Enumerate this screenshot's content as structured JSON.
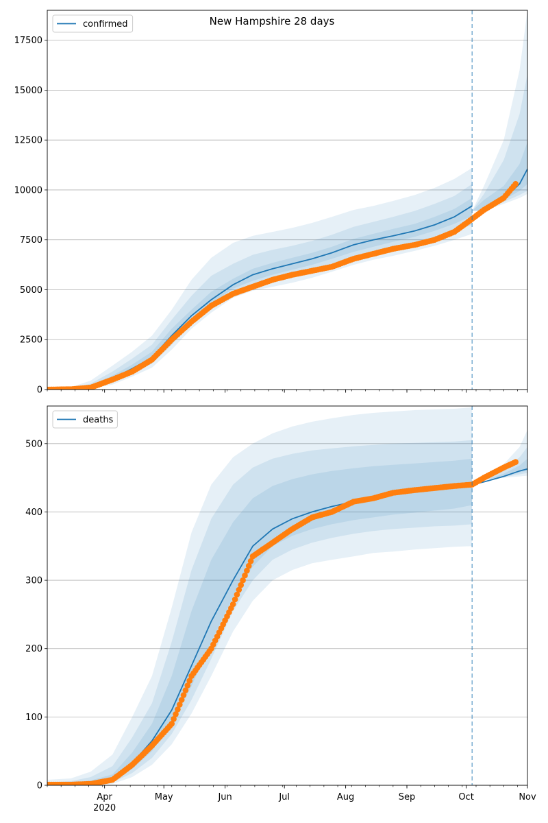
{
  "figure": {
    "title": "New Hampshire 28 days"
  },
  "colors": {
    "model": "#1f77b4",
    "observed": "#ff7f0e",
    "band": "#1f77b4",
    "grid": "#b0b0b0",
    "forecast_line": "#1f77b4"
  },
  "x_axis": {
    "ticks": [
      {
        "date": "2020-04-01",
        "label": "Apr",
        "sub": "2020"
      },
      {
        "date": "2020-05-01",
        "label": "May"
      },
      {
        "date": "2020-06-01",
        "label": "Jun"
      },
      {
        "date": "2020-07-01",
        "label": "Jul"
      },
      {
        "date": "2020-08-01",
        "label": "Aug"
      },
      {
        "date": "2020-09-01",
        "label": "Sep"
      },
      {
        "date": "2020-10-01",
        "label": "Oct"
      },
      {
        "date": "2020-11-01",
        "label": "Nov"
      }
    ]
  },
  "chart_data": [
    {
      "type": "line",
      "legend": [
        "confirmed"
      ],
      "legend_position": "top-left",
      "grid": "horizontal",
      "xlim": [
        "2020-03-03",
        "2020-11-01"
      ],
      "ylim": [
        0,
        19000
      ],
      "y_ticks": [
        0,
        2500,
        5000,
        7500,
        10000,
        12500,
        15000,
        17500
      ],
      "forecast_start": "2020-10-04",
      "model_anchor_dates": [
        "2020-03-03",
        "2020-03-15",
        "2020-03-25",
        "2020-04-05",
        "2020-04-15",
        "2020-04-25",
        "2020-05-05",
        "2020-05-15",
        "2020-05-25",
        "2020-06-05",
        "2020-06-15",
        "2020-06-25",
        "2020-07-05",
        "2020-07-15",
        "2020-07-25",
        "2020-08-05",
        "2020-08-15",
        "2020-08-25",
        "2020-09-05",
        "2020-09-15",
        "2020-09-25",
        "2020-10-04",
        "2020-10-10",
        "2020-10-20",
        "2020-10-28",
        "2020-11-01"
      ],
      "model_median": [
        0,
        20,
        120,
        550,
        1050,
        1600,
        2700,
        3700,
        4500,
        5250,
        5750,
        6050,
        6300,
        6550,
        6850,
        7250,
        7500,
        7700,
        7950,
        8250,
        8650,
        9200,
        8950,
        9550,
        10300,
        11050
      ],
      "band_outer_lower": [
        0,
        0,
        30,
        250,
        650,
        1100,
        2000,
        3050,
        3850,
        4600,
        4950,
        5150,
        5350,
        5600,
        5900,
        6250,
        6500,
        6700,
        6950,
        7200,
        7500,
        7800,
        8950,
        9300,
        9600,
        9800
      ],
      "band_outer_upper": [
        60,
        120,
        450,
        1200,
        1900,
        2700,
        4000,
        5500,
        6600,
        7350,
        7700,
        7900,
        8100,
        8350,
        8650,
        9000,
        9200,
        9450,
        9750,
        10100,
        10550,
        11100,
        10200,
        12500,
        16000,
        19000
      ],
      "band_mid_lower": [
        0,
        5,
        60,
        350,
        800,
        1300,
        2250,
        3300,
        4100,
        4850,
        5250,
        5500,
        5750,
        6000,
        6300,
        6650,
        6900,
        7100,
        7350,
        7650,
        7950,
        8250,
        8950,
        9400,
        9750,
        9950
      ],
      "band_mid_upper": [
        40,
        70,
        300,
        900,
        1550,
        2250,
        3500,
        4700,
        5700,
        6300,
        6750,
        7000,
        7200,
        7450,
        7750,
        8150,
        8400,
        8650,
        8950,
        9300,
        9700,
        10300,
        9800,
        11500,
        13800,
        15800
      ],
      "band_inner_lower": [
        0,
        10,
        80,
        450,
        900,
        1450,
        2450,
        3500,
        4300,
        5050,
        5450,
        5750,
        6000,
        6250,
        6550,
        6900,
        7150,
        7400,
        7650,
        7950,
        8300,
        8700,
        8950,
        9500,
        9950,
        10300
      ],
      "band_inner_upper": [
        25,
        40,
        200,
        700,
        1250,
        1900,
        3050,
        4000,
        4900,
        5550,
        6050,
        6350,
        6600,
        6850,
        7150,
        7550,
        7800,
        8050,
        8300,
        8650,
        9050,
        9600,
        9500,
        10200,
        11300,
        12400
      ],
      "observed_anchor_dates": [
        "2020-03-03",
        "2020-03-15",
        "2020-03-25",
        "2020-04-05",
        "2020-04-15",
        "2020-04-25",
        "2020-05-05",
        "2020-05-15",
        "2020-05-25",
        "2020-06-05",
        "2020-06-15",
        "2020-06-25",
        "2020-07-05",
        "2020-07-15",
        "2020-07-25",
        "2020-08-05",
        "2020-08-15",
        "2020-08-25",
        "2020-09-05",
        "2020-09-15",
        "2020-09-25",
        "2020-10-04",
        "2020-10-10",
        "2020-10-20",
        "2020-10-26"
      ],
      "observed": [
        0,
        15,
        100,
        500,
        900,
        1500,
        2500,
        3400,
        4200,
        4800,
        5150,
        5500,
        5750,
        5950,
        6150,
        6550,
        6800,
        7050,
        7250,
        7500,
        7900,
        8550,
        9000,
        9600,
        10300
      ]
    },
    {
      "type": "line",
      "legend": [
        "deaths"
      ],
      "legend_position": "top-left",
      "grid": "horizontal",
      "xlim": [
        "2020-03-03",
        "2020-11-01"
      ],
      "ylim": [
        0,
        555
      ],
      "y_ticks": [
        0,
        100,
        200,
        300,
        400,
        500
      ],
      "forecast_start": "2020-10-04",
      "model_anchor_dates": [
        "2020-03-03",
        "2020-03-15",
        "2020-03-25",
        "2020-04-05",
        "2020-04-15",
        "2020-04-25",
        "2020-05-05",
        "2020-05-15",
        "2020-05-25",
        "2020-06-05",
        "2020-06-15",
        "2020-06-25",
        "2020-07-05",
        "2020-07-15",
        "2020-07-25",
        "2020-08-05",
        "2020-08-15",
        "2020-08-25",
        "2020-09-05",
        "2020-09-15",
        "2020-09-25",
        "2020-10-04",
        "2020-10-10",
        "2020-10-20",
        "2020-10-28",
        "2020-11-01"
      ],
      "model_median": [
        0,
        0,
        1,
        8,
        32,
        65,
        110,
        175,
        240,
        300,
        350,
        375,
        390,
        400,
        408,
        415,
        420,
        425,
        430,
        432,
        436,
        441,
        444,
        452,
        460,
        463
      ],
      "band_outer_lower": [
        0,
        0,
        0,
        2,
        12,
        30,
        60,
        105,
        160,
        225,
        270,
        300,
        315,
        325,
        330,
        335,
        340,
        342,
        345,
        347,
        349,
        350,
        448,
        450,
        452,
        453
      ],
      "band_outer_upper": [
        8,
        10,
        20,
        45,
        100,
        160,
        260,
        370,
        440,
        480,
        500,
        515,
        525,
        532,
        537,
        542,
        545,
        547,
        549,
        550,
        551,
        553,
        446,
        470,
        495,
        520
      ],
      "band_mid_lower": [
        0,
        0,
        0,
        4,
        18,
        40,
        75,
        125,
        185,
        255,
        300,
        330,
        345,
        355,
        362,
        368,
        372,
        375,
        377,
        379,
        380,
        382,
        447,
        451,
        455,
        457
      ],
      "band_mid_upper": [
        4,
        6,
        12,
        28,
        70,
        120,
        210,
        315,
        390,
        440,
        465,
        478,
        485,
        490,
        493,
        496,
        498,
        500,
        501,
        502,
        503,
        505,
        446,
        462,
        480,
        495
      ],
      "band_inner_lower": [
        0,
        0,
        0,
        5,
        24,
        50,
        90,
        145,
        210,
        275,
        320,
        350,
        365,
        375,
        382,
        388,
        392,
        396,
        399,
        402,
        405,
        410,
        447,
        452,
        458,
        460
      ],
      "band_inner_upper": [
        2,
        3,
        7,
        16,
        48,
        90,
        160,
        255,
        330,
        385,
        420,
        438,
        448,
        455,
        460,
        464,
        467,
        469,
        471,
        473,
        475,
        478,
        446,
        456,
        468,
        478
      ],
      "observed_anchor_dates": [
        "2020-03-03",
        "2020-03-15",
        "2020-03-25",
        "2020-04-05",
        "2020-04-15",
        "2020-04-25",
        "2020-05-05",
        "2020-05-15",
        "2020-05-25",
        "2020-06-05",
        "2020-06-15",
        "2020-06-25",
        "2020-07-05",
        "2020-07-15",
        "2020-07-25",
        "2020-08-05",
        "2020-08-15",
        "2020-08-25",
        "2020-09-05",
        "2020-09-15",
        "2020-09-25",
        "2020-10-04",
        "2020-10-10",
        "2020-10-20",
        "2020-10-26"
      ],
      "observed": [
        1,
        1,
        2,
        8,
        30,
        58,
        90,
        160,
        200,
        265,
        335,
        355,
        375,
        392,
        400,
        415,
        420,
        428,
        432,
        435,
        438,
        440,
        450,
        465,
        473
      ]
    }
  ]
}
